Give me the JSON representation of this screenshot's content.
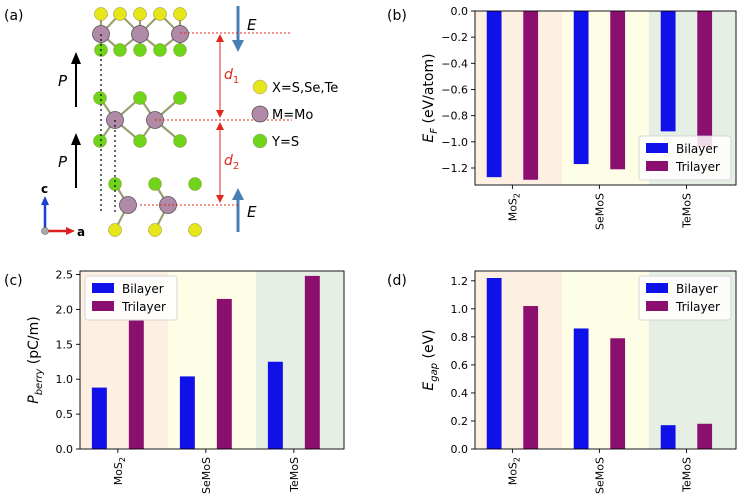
{
  "panels": {
    "a": {
      "label": "(a)",
      "E_label": "E",
      "P_label": "P",
      "d1_label": "d",
      "d1_sub": "1",
      "d2_label": "d",
      "d2_sub": "2",
      "axis_c": "c",
      "axis_a": "a",
      "legend": [
        "X=S,Se,Te",
        "M=Mo",
        "Y=S"
      ]
    }
  },
  "colors": {
    "bilayer": "#1010e8",
    "trilayer": "#8b0f6e",
    "shade_mos2": "#fdf0e2",
    "shade_semos": "#fefee6",
    "shade_temos": "#e6efe4",
    "atom_x": "#e6e61a",
    "atom_m": "#b08aa6",
    "atom_y": "#6fd41a",
    "field_arrow": "#4a7fb5",
    "dim_red": "#e0281c"
  },
  "chart_data": [
    {
      "id": "b",
      "panel_label": "(b)",
      "type": "bar",
      "categories": [
        "MoS2",
        "SeMoS",
        "TeMoS"
      ],
      "series": [
        {
          "name": "Bilayer",
          "values": [
            -1.27,
            -1.17,
            -0.92
          ]
        },
        {
          "name": "Trilayer",
          "values": [
            -1.29,
            -1.21,
            -1.04
          ]
        }
      ],
      "ylabel": "E_F (eV/atom)",
      "ylabel_main": "E",
      "ylabel_sub": "F",
      "ylabel_rest": " (eV/atom)",
      "ylim": [
        -1.33,
        0.0
      ],
      "yticks": [
        0.0,
        -0.2,
        -0.4,
        -0.6,
        -0.8,
        -1.0,
        -1.2
      ],
      "ytick_labels": [
        "0.0",
        "−0.2",
        "−0.4",
        "−0.6",
        "−0.8",
        "−1.0",
        "−1.2"
      ],
      "legend_position": "lower-right"
    },
    {
      "id": "c",
      "panel_label": "(c)",
      "type": "bar",
      "categories": [
        "MoS2",
        "SeMoS",
        "TeMoS"
      ],
      "series": [
        {
          "name": "Bilayer",
          "values": [
            0.88,
            1.04,
            1.25
          ]
        },
        {
          "name": "Trilayer",
          "values": [
            1.84,
            2.15,
            2.48
          ]
        }
      ],
      "ylabel": "P_berry (pC/m)",
      "ylabel_main": "P",
      "ylabel_sub": "berry",
      "ylabel_rest": " (pC/m)",
      "ylim": [
        0.0,
        2.55
      ],
      "yticks": [
        0.0,
        0.5,
        1.0,
        1.5,
        2.0,
        2.5
      ],
      "ytick_labels": [
        "0.0",
        "0.5",
        "1.0",
        "1.5",
        "2.0",
        "2.5"
      ],
      "legend_position": "upper-left"
    },
    {
      "id": "d",
      "panel_label": "(d)",
      "type": "bar",
      "categories": [
        "MoS2",
        "SeMoS",
        "TeMoS"
      ],
      "series": [
        {
          "name": "Bilayer",
          "values": [
            1.22,
            0.86,
            0.17
          ]
        },
        {
          "name": "Trilayer",
          "values": [
            1.02,
            0.79,
            0.18
          ]
        }
      ],
      "ylabel": "E_gap (eV)",
      "ylabel_main": "E",
      "ylabel_sub": "gap",
      "ylabel_rest": " (eV)",
      "ylim": [
        0.0,
        1.27
      ],
      "yticks": [
        0.0,
        0.2,
        0.4,
        0.6,
        0.8,
        1.0,
        1.2
      ],
      "ytick_labels": [
        "0.0",
        "0.2",
        "0.4",
        "0.6",
        "0.8",
        "1.0",
        "1.2"
      ],
      "legend_position": "upper-right"
    }
  ]
}
